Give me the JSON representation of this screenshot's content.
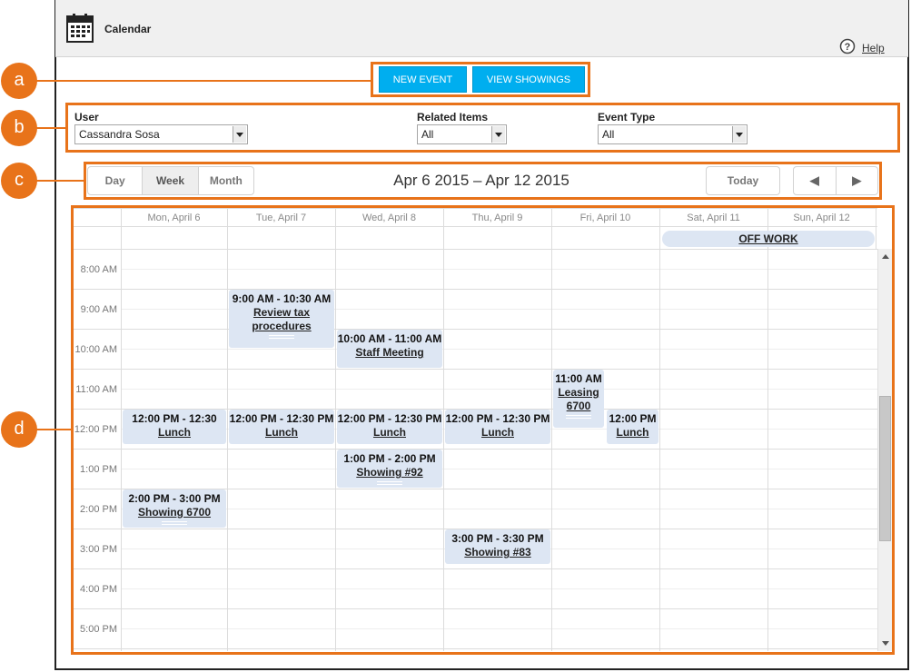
{
  "app": {
    "title": "Calendar",
    "help_label": "Help",
    "icon": "calendar-icon"
  },
  "callouts": [
    "a",
    "b",
    "c",
    "d"
  ],
  "toolbar": {
    "new_event": "NEW EVENT",
    "view_showings": "VIEW SHOWINGS"
  },
  "filters": {
    "user": {
      "label": "User",
      "value": "Cassandra Sosa"
    },
    "related": {
      "label": "Related Items",
      "value": "All"
    },
    "event_type": {
      "label": "Event Type",
      "value": "All"
    }
  },
  "views": {
    "day": "Day",
    "week": "Week",
    "month": "Month",
    "active": "Week"
  },
  "range_title": "Apr 6 2015 – Apr 12 2015",
  "nav": {
    "today": "Today",
    "prev": "◀",
    "next": "▶"
  },
  "days": [
    "Mon, April 6",
    "Tue, April 7",
    "Wed, April 8",
    "Thu, April 9",
    "Fri, April 10",
    "Sat, April 11",
    "Sun, April 12"
  ],
  "all_day": {
    "label": "OFF WORK"
  },
  "times": [
    "8:00 AM",
    "9:00 AM",
    "10:00 AM",
    "11:00 AM",
    "12:00 PM",
    "1:00 PM",
    "2:00 PM",
    "3:00 PM",
    "4:00 PM",
    "5:00 PM"
  ],
  "events": {
    "review_tax": {
      "time": "9:00 AM - 10:30 AM",
      "title": "Review tax procedures"
    },
    "staff_meeting": {
      "time": "10:00 AM - 11:00 AM",
      "title": "Staff Meeting"
    },
    "leasing": {
      "time": "11:00 AM",
      "title": "Leasing 6700"
    },
    "lunch_mon": {
      "time": "12:00 PM - 12:30",
      "title": "Lunch"
    },
    "lunch_tue": {
      "time": "12:00 PM - 12:30 PM",
      "title": "Lunch"
    },
    "lunch_wed": {
      "time": "12:00 PM - 12:30 PM",
      "title": "Lunch"
    },
    "lunch_thu": {
      "time": "12:00 PM - 12:30 PM",
      "title": "Lunch"
    },
    "lunch_fri": {
      "time": "12:00 PM",
      "title": "Lunch"
    },
    "showing_92": {
      "time": "1:00 PM - 2:00 PM",
      "title": "Showing #92"
    },
    "showing_6700": {
      "time": "2:00 PM - 3:00 PM",
      "title": "Showing 6700"
    },
    "showing_83": {
      "time": "3:00 PM - 3:30 PM",
      "title": "Showing #83"
    }
  },
  "colors": {
    "accent": "#e8731a",
    "button": "#00aeef",
    "event_bg": "#dde6f3"
  }
}
